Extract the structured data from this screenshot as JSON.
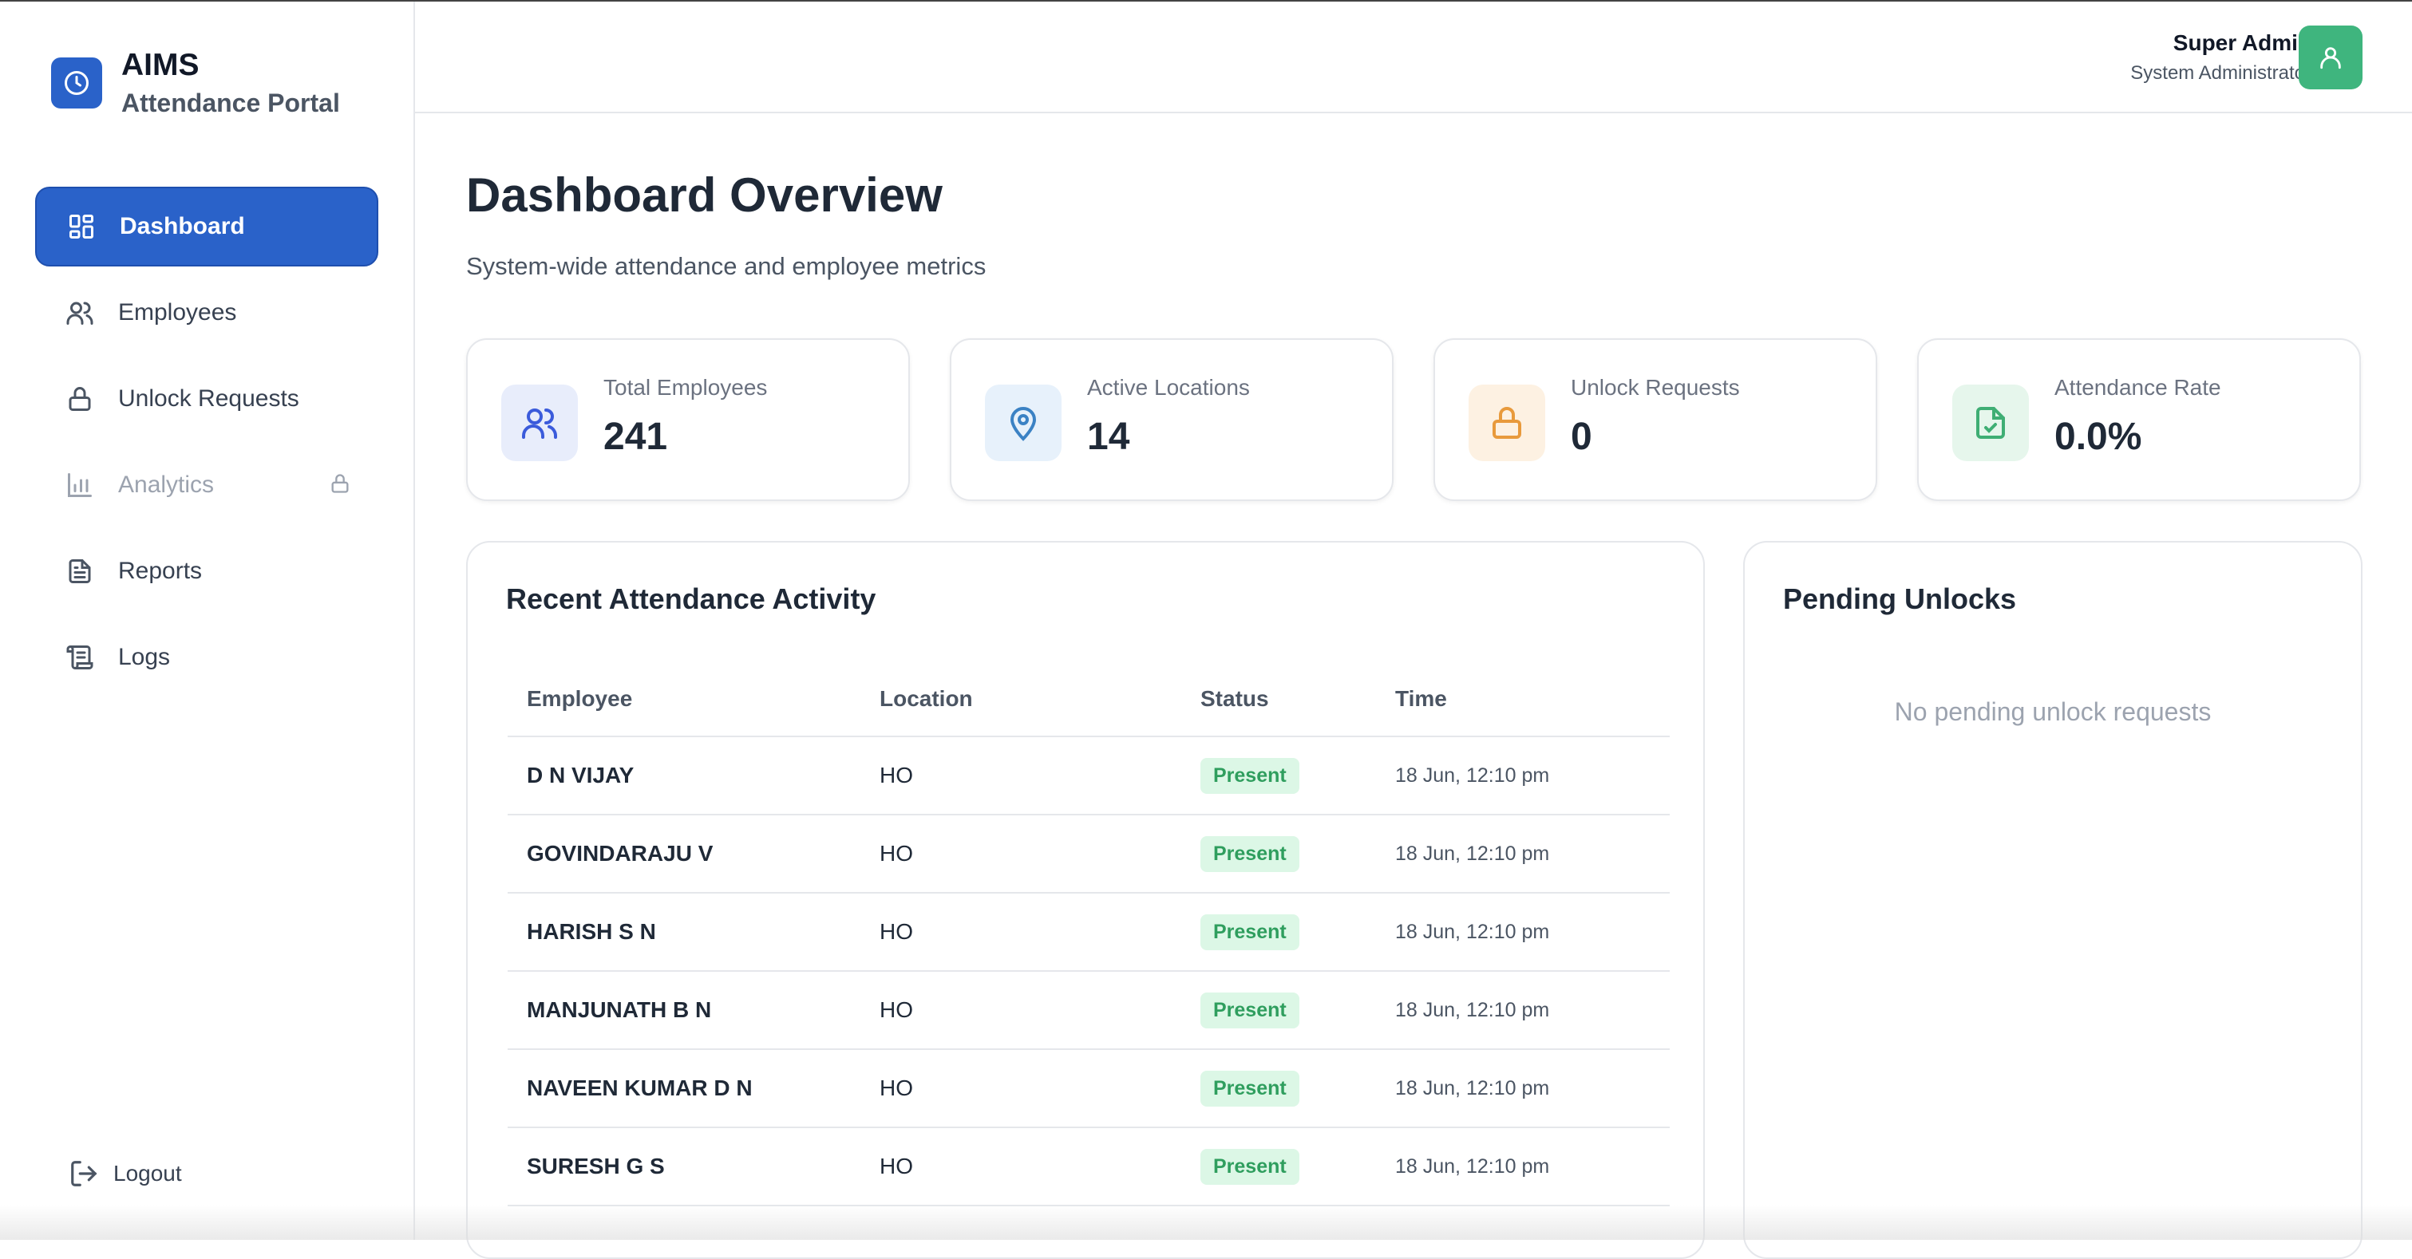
{
  "brand": {
    "title": "AIMS",
    "subtitle": "Attendance Portal"
  },
  "sidebar": {
    "items": [
      {
        "label": "Dashboard",
        "icon": "dashboard-icon",
        "active": true
      },
      {
        "label": "Employees",
        "icon": "users-icon"
      },
      {
        "label": "Unlock Requests",
        "icon": "lock-icon"
      },
      {
        "label": "Analytics",
        "icon": "bar-chart-icon",
        "disabled": true
      },
      {
        "label": "Reports",
        "icon": "document-icon"
      },
      {
        "label": "Logs",
        "icon": "scroll-icon"
      }
    ],
    "logout": "Logout"
  },
  "header": {
    "user_name": "Super Admin",
    "user_role": "System Administrator"
  },
  "page": {
    "title": "Dashboard Overview",
    "subtitle": "System-wide attendance and employee metrics"
  },
  "stats": [
    {
      "label": "Total Employees",
      "value": "241",
      "icon": "users-icon",
      "color": "#3b5bdb",
      "bg": "#e8edfb"
    },
    {
      "label": "Active Locations",
      "value": "14",
      "icon": "map-pin-icon",
      "color": "#3b82c4",
      "bg": "#e7f1fb"
    },
    {
      "label": "Unlock Requests",
      "value": "0",
      "icon": "lock-icon",
      "color": "#e89a3c",
      "bg": "#fdf1e2"
    },
    {
      "label": "Attendance Rate",
      "value": "0.0%",
      "icon": "file-check-icon",
      "color": "#3fae74",
      "bg": "#e6f6ec"
    }
  ],
  "activity": {
    "title": "Recent Attendance Activity",
    "columns": [
      "Employee",
      "Location",
      "Status",
      "Time"
    ],
    "rows": [
      {
        "employee": "D N VIJAY",
        "location": "HO",
        "status": "Present",
        "time": "18 Jun, 12:10 pm"
      },
      {
        "employee": "GOVINDARAJU V",
        "location": "HO",
        "status": "Present",
        "time": "18 Jun, 12:10 pm"
      },
      {
        "employee": "HARISH S N",
        "location": "HO",
        "status": "Present",
        "time": "18 Jun, 12:10 pm"
      },
      {
        "employee": "MANJUNATH B N",
        "location": "HO",
        "status": "Present",
        "time": "18 Jun, 12:10 pm"
      },
      {
        "employee": "NAVEEN KUMAR D N",
        "location": "HO",
        "status": "Present",
        "time": "18 Jun, 12:10 pm"
      },
      {
        "employee": "SURESH G S",
        "location": "HO",
        "status": "Present",
        "time": "18 Jun, 12:10 pm"
      }
    ]
  },
  "pending": {
    "title": "Pending Unlocks",
    "empty_text": "No pending unlock requests"
  },
  "colors": {
    "primary": "#2a62c9",
    "success": "#3fb57e",
    "badge_bg": "#dcf7e6",
    "badge_text": "#2f9e5e"
  }
}
